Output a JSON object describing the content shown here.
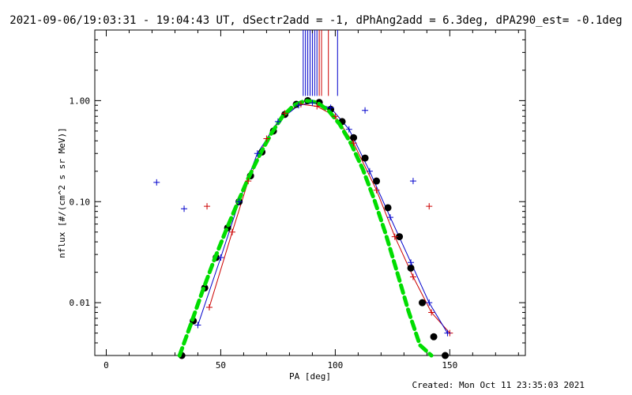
{
  "header": {
    "title": "2021-09-06/19:03:31 - 19:04:43 UT, dSectr2add = -1, dPhAng2add = 6.3deg, dPA290_est= -0.1deg"
  },
  "footer": {
    "created": "Created: Mon Oct 11 23:35:03 2021"
  },
  "chart_data": {
    "type": "line",
    "xlabel": "PA [deg]",
    "ylabel": "nflux [#/(cm^2 s sr MeV)]",
    "xlim": [
      -5,
      183
    ],
    "ylim": [
      0.003,
      5
    ],
    "yscale": "log",
    "xticks": [
      0,
      50,
      100,
      150
    ],
    "yticks": [
      0.01,
      0.1,
      1.0
    ],
    "ytick_labels": [
      "0.01",
      "0.10",
      "1.00"
    ],
    "grid": false,
    "colors": {
      "red": "#cc0000",
      "blue": "#0000cc",
      "black": "#000000",
      "green": "#00dd00"
    },
    "series": [
      {
        "color": "red",
        "style": "lines+plus",
        "x": [
          45,
          55,
          62,
          70,
          78,
          85,
          92,
          100,
          108,
          118,
          126,
          134,
          142,
          150
        ],
        "y": [
          0.009,
          0.05,
          0.16,
          0.42,
          0.75,
          0.92,
          0.88,
          0.7,
          0.38,
          0.13,
          0.045,
          0.018,
          0.008,
          0.005
        ]
      },
      {
        "color": "blue",
        "style": "lines+plus",
        "x": [
          40,
          50,
          58,
          66,
          75,
          84,
          90,
          98,
          106,
          115,
          124,
          133,
          141,
          149
        ],
        "y": [
          0.006,
          0.028,
          0.1,
          0.3,
          0.62,
          0.9,
          0.95,
          0.85,
          0.52,
          0.2,
          0.07,
          0.025,
          0.01,
          0.005
        ]
      },
      {
        "color": "black",
        "style": "dots",
        "x": [
          33,
          38,
          43,
          48,
          53,
          58,
          63,
          68,
          73,
          78,
          83,
          88,
          93,
          98,
          103,
          108,
          113,
          118,
          123,
          128,
          133,
          138,
          143,
          148
        ],
        "y": [
          0.003,
          0.0066,
          0.014,
          0.028,
          0.055,
          0.1,
          0.18,
          0.31,
          0.5,
          0.73,
          0.92,
          1.0,
          0.96,
          0.82,
          0.62,
          0.43,
          0.27,
          0.16,
          0.087,
          0.045,
          0.022,
          0.01,
          0.0046,
          0.003
        ]
      },
      {
        "color": "green",
        "style": "dashed",
        "x": [
          32,
          37,
          42,
          47,
          52,
          57,
          62,
          67,
          72,
          77,
          82,
          87,
          92,
          97,
          102,
          107,
          112,
          117,
          122,
          127,
          132,
          137,
          142
        ],
        "y": [
          0.003,
          0.0062,
          0.013,
          0.026,
          0.05,
          0.093,
          0.17,
          0.29,
          0.47,
          0.7,
          0.9,
          1.0,
          0.96,
          0.8,
          0.58,
          0.37,
          0.21,
          0.105,
          0.048,
          0.02,
          0.0082,
          0.0038,
          0.003
        ]
      }
    ],
    "scatter_outliers": [
      {
        "color": "blue",
        "x": 22,
        "y": 0.155
      },
      {
        "color": "blue",
        "x": 34,
        "y": 0.085
      },
      {
        "color": "red",
        "x": 44,
        "y": 0.09
      },
      {
        "color": "red",
        "x": 141,
        "y": 0.09
      },
      {
        "color": "blue",
        "x": 113,
        "y": 0.8
      },
      {
        "color": "blue",
        "x": 134,
        "y": 0.16
      }
    ],
    "top_markers": [
      {
        "color": "blue",
        "x": 86
      },
      {
        "color": "blue",
        "x": 87
      },
      {
        "color": "blue",
        "x": 88
      },
      {
        "color": "blue",
        "x": 89
      },
      {
        "color": "blue",
        "x": 90
      },
      {
        "color": "blue",
        "x": 91
      },
      {
        "color": "blue",
        "x": 92
      },
      {
        "color": "red",
        "x": 93
      },
      {
        "color": "red",
        "x": 94
      },
      {
        "color": "red",
        "x": 97
      },
      {
        "color": "blue",
        "x": 101
      }
    ]
  }
}
